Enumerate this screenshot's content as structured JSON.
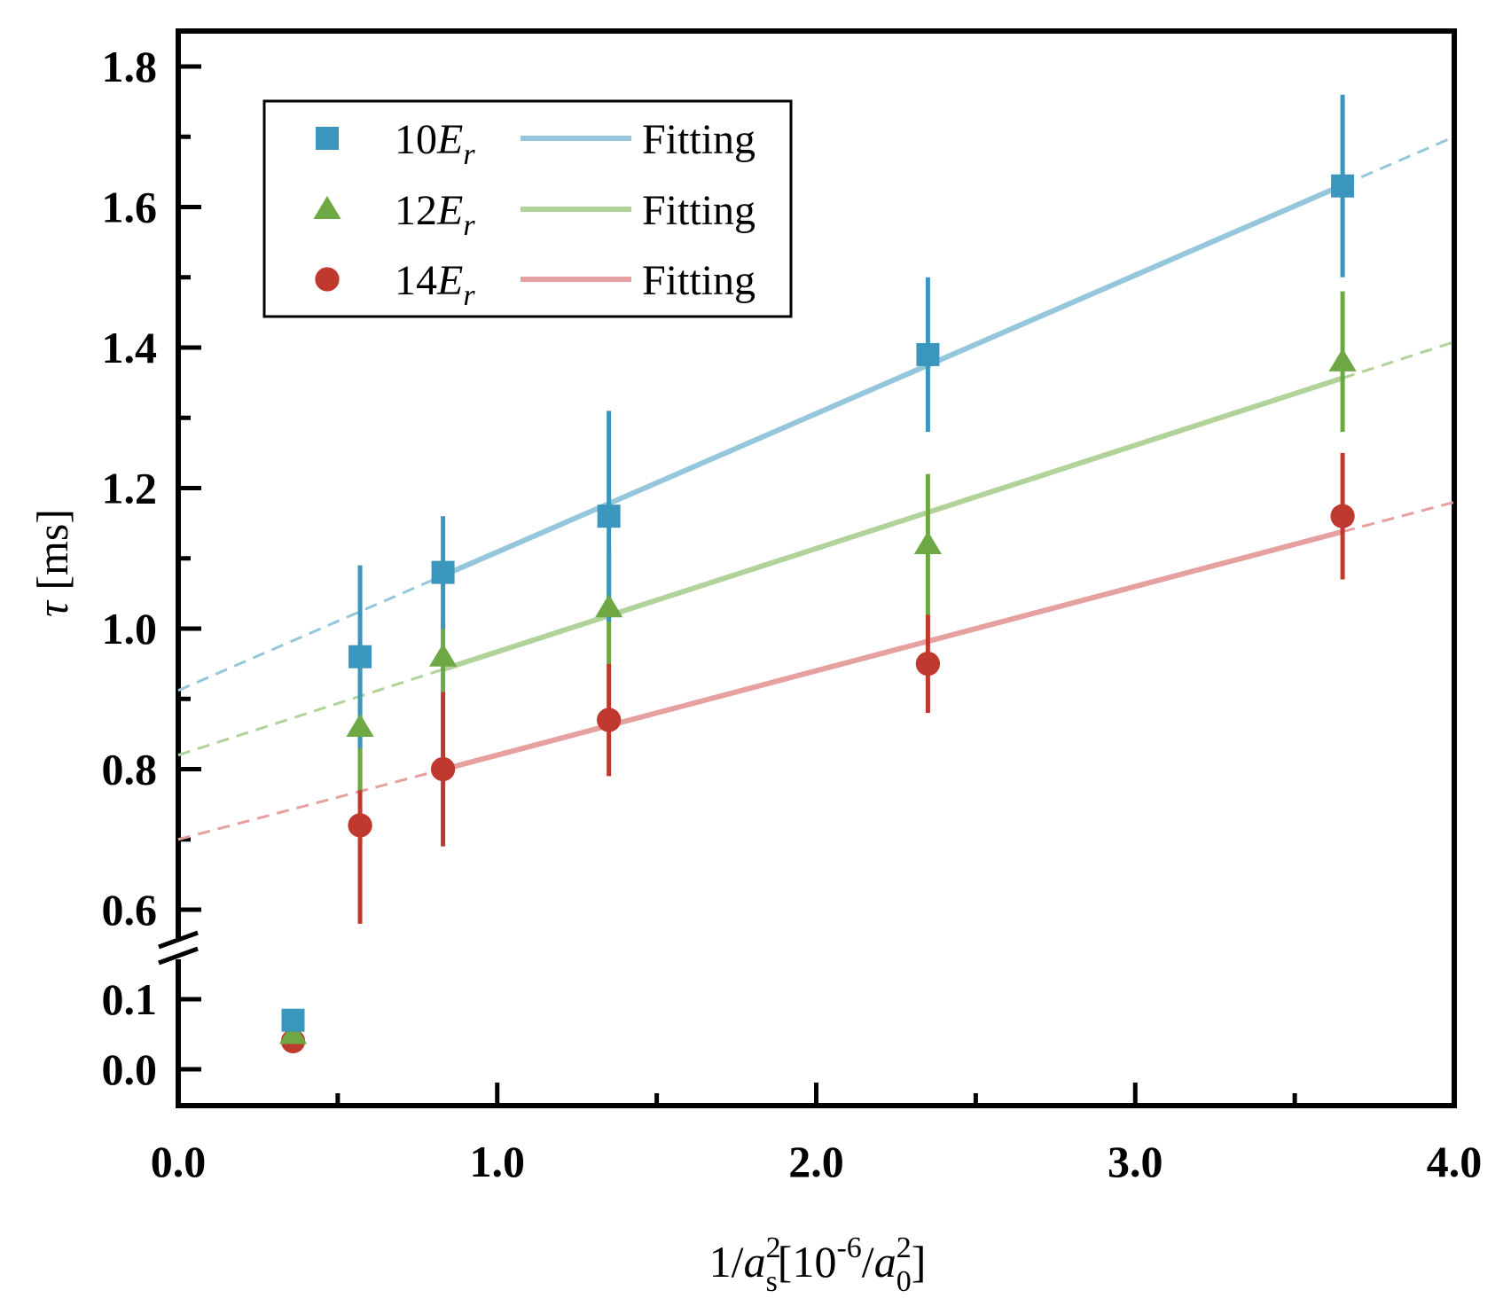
{
  "chart_data": {
    "type": "scatter",
    "title": "",
    "xlabel": {
      "prefix": "1/",
      "var": "a",
      "var_sup": "2",
      "var_sub": "s",
      "bracket_open": "[10",
      "exp": "-6",
      "slash": "/",
      "unit_var": "a",
      "unit_sup": "2",
      "unit_sub": "0",
      "bracket_close": "]"
    },
    "ylabel": {
      "var": "τ",
      "unit": " [ms]"
    },
    "xlim": [
      0.0,
      4.0
    ],
    "x_ticks": [
      "0.0",
      "1.0",
      "2.0",
      "3.0",
      "4.0"
    ],
    "x_tick_values": [
      0,
      1,
      2,
      3,
      4
    ],
    "ylim_upper": [
      0.55,
      1.85
    ],
    "ylim_lower": [
      -0.05,
      0.15
    ],
    "y_ticks_upper": [
      "0.6",
      "0.8",
      "1.0",
      "1.2",
      "1.4",
      "1.6",
      "1.8"
    ],
    "y_tick_values_upper": [
      0.6,
      0.8,
      1.0,
      1.2,
      1.4,
      1.6,
      1.8
    ],
    "y_ticks_lower": [
      "0.0",
      "0.1"
    ],
    "y_tick_values_lower": [
      0.0,
      0.1
    ],
    "axis_break": true,
    "grid": false,
    "legend_position": "top-left",
    "series": [
      {
        "name_num": "10",
        "name_var": "E",
        "name_sub": "r",
        "fit_label": "Fitting",
        "marker": "square",
        "marker_color": "#3b96bd",
        "fit_color": "#94c6dc",
        "x": [
          0.36,
          0.57,
          0.83,
          1.35,
          2.35,
          3.65
        ],
        "y": [
          0.07,
          0.96,
          1.08,
          1.16,
          1.39,
          1.63
        ],
        "err": [
          0.0,
          0.13,
          0.08,
          0.15,
          0.11,
          0.13
        ],
        "fit_intercept": 0.912,
        "fit_slope": 0.197,
        "fit_range": [
          0.83,
          3.65
        ]
      },
      {
        "name_num": "12",
        "name_var": "E",
        "name_sub": "r",
        "fit_label": "Fitting",
        "marker": "triangle",
        "marker_color": "#6ea845",
        "fit_color": "#b1d39a",
        "x": [
          0.36,
          0.57,
          0.83,
          1.35,
          2.35,
          3.65
        ],
        "y": [
          0.05,
          0.86,
          0.96,
          1.03,
          1.12,
          1.38
        ],
        "err": [
          0.0,
          0.09,
          0.05,
          0.08,
          0.1,
          0.1
        ],
        "fit_intercept": 0.82,
        "fit_slope": 0.147,
        "fit_range": [
          0.83,
          3.65
        ]
      },
      {
        "name_num": "14",
        "name_var": "E",
        "name_sub": "r",
        "fit_label": "Fitting",
        "marker": "circle",
        "marker_color": "#c0392f",
        "fit_color": "#e7a0a0",
        "x": [
          0.36,
          0.57,
          0.83,
          1.35,
          2.35,
          3.65
        ],
        "y": [
          0.04,
          0.72,
          0.8,
          0.87,
          0.95,
          1.16
        ],
        "err": [
          0.0,
          0.14,
          0.11,
          0.08,
          0.07,
          0.09
        ],
        "fit_intercept": 0.7,
        "fit_slope": 0.12,
        "fit_range": [
          0.83,
          3.65
        ]
      }
    ]
  }
}
